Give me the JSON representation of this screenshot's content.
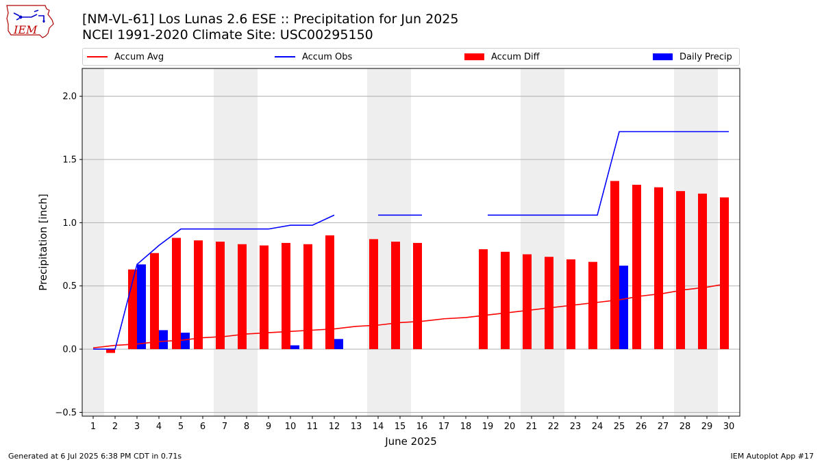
{
  "header": {
    "title_line1": "[NM-VL-61] Los Lunas 2.6 ESE :: Precipitation for Jun 2025",
    "title_line2": "NCEI 1991-2020 Climate Site: USC00295150",
    "logo_text": "IEM"
  },
  "footer": {
    "left": "Generated at 6 Jul 2025 6:38 PM CDT in 0.71s",
    "right": "IEM Autoplot App #17"
  },
  "legend": {
    "placement": "top, above plot",
    "items": [
      {
        "label": "Accum Avg",
        "kind": "line",
        "color": "#ff0000"
      },
      {
        "label": "Accum Obs",
        "kind": "line",
        "color": "#0000ff"
      },
      {
        "label": "Accum Diff",
        "kind": "bar",
        "color": "#ff0000"
      },
      {
        "label": "Daily Precip",
        "kind": "bar",
        "color": "#0000ff"
      }
    ]
  },
  "chart_data": {
    "type": "bar",
    "title": "[NM-VL-61] Los Lunas 2.6 ESE :: Precipitation for Jun 2025",
    "subtitle": "NCEI 1991-2020 Climate Site: USC00295150",
    "xlabel": "June 2025",
    "ylabel": "Precipitation [inch]",
    "xlim": [
      0.5,
      30.5
    ],
    "ylim": [
      -0.53,
      2.22
    ],
    "grid": "horizontal",
    "yticks": [
      -0.5,
      0.0,
      0.5,
      1.0,
      1.5,
      2.0
    ],
    "ytick_labels": [
      "−0.5",
      "0.0",
      "0.5",
      "1.0",
      "1.5",
      "2.0"
    ],
    "x": [
      1,
      2,
      3,
      4,
      5,
      6,
      7,
      8,
      9,
      10,
      11,
      12,
      13,
      14,
      15,
      16,
      17,
      18,
      19,
      20,
      21,
      22,
      23,
      24,
      25,
      26,
      27,
      28,
      29,
      30
    ],
    "weekend_bands": [
      [
        0.5,
        1.5
      ],
      [
        6.5,
        8.5
      ],
      [
        13.5,
        15.5
      ],
      [
        20.5,
        22.5
      ],
      [
        27.5,
        29.5
      ]
    ],
    "band_color": "#eeeeee",
    "series": [
      {
        "name": "Accum Avg",
        "type": "line",
        "color": "#ff0000",
        "values": [
          0.01,
          0.03,
          0.04,
          0.06,
          0.07,
          0.09,
          0.1,
          0.12,
          0.13,
          0.14,
          0.15,
          0.16,
          0.18,
          0.19,
          0.21,
          0.22,
          0.24,
          0.25,
          0.27,
          0.29,
          0.31,
          0.33,
          0.35,
          0.37,
          0.39,
          0.42,
          0.44,
          0.47,
          0.49,
          0.52
        ]
      },
      {
        "name": "Accum Obs",
        "type": "line",
        "color": "#0000ff",
        "values": [
          0.0,
          0.0,
          0.67,
          0.82,
          0.95,
          0.95,
          0.95,
          0.95,
          0.95,
          0.98,
          0.98,
          1.06,
          null,
          1.06,
          1.06,
          1.06,
          null,
          null,
          1.06,
          1.06,
          1.06,
          1.06,
          1.06,
          1.06,
          1.72,
          1.72,
          1.72,
          1.72,
          1.72,
          1.72
        ]
      },
      {
        "name": "Accum Diff",
        "type": "bar",
        "color": "#ff0000",
        "values": [
          null,
          -0.03,
          0.63,
          0.76,
          0.88,
          0.86,
          0.85,
          0.83,
          0.82,
          0.84,
          0.83,
          0.9,
          null,
          0.87,
          0.85,
          0.84,
          null,
          null,
          0.79,
          0.77,
          0.75,
          0.73,
          0.71,
          0.69,
          1.33,
          1.3,
          1.28,
          1.25,
          1.23,
          1.2
        ]
      },
      {
        "name": "Daily Precip",
        "type": "bar",
        "color": "#0000ff",
        "values": [
          0.0,
          0.0,
          0.67,
          0.15,
          0.13,
          0.0,
          0.0,
          0.0,
          0.0,
          0.03,
          0.0,
          0.08,
          null,
          0.0,
          0.0,
          0.0,
          null,
          null,
          0.0,
          0.0,
          0.0,
          0.0,
          0.0,
          0.0,
          0.66,
          0.0,
          0.0,
          0.0,
          0.0,
          0.0
        ]
      }
    ]
  }
}
